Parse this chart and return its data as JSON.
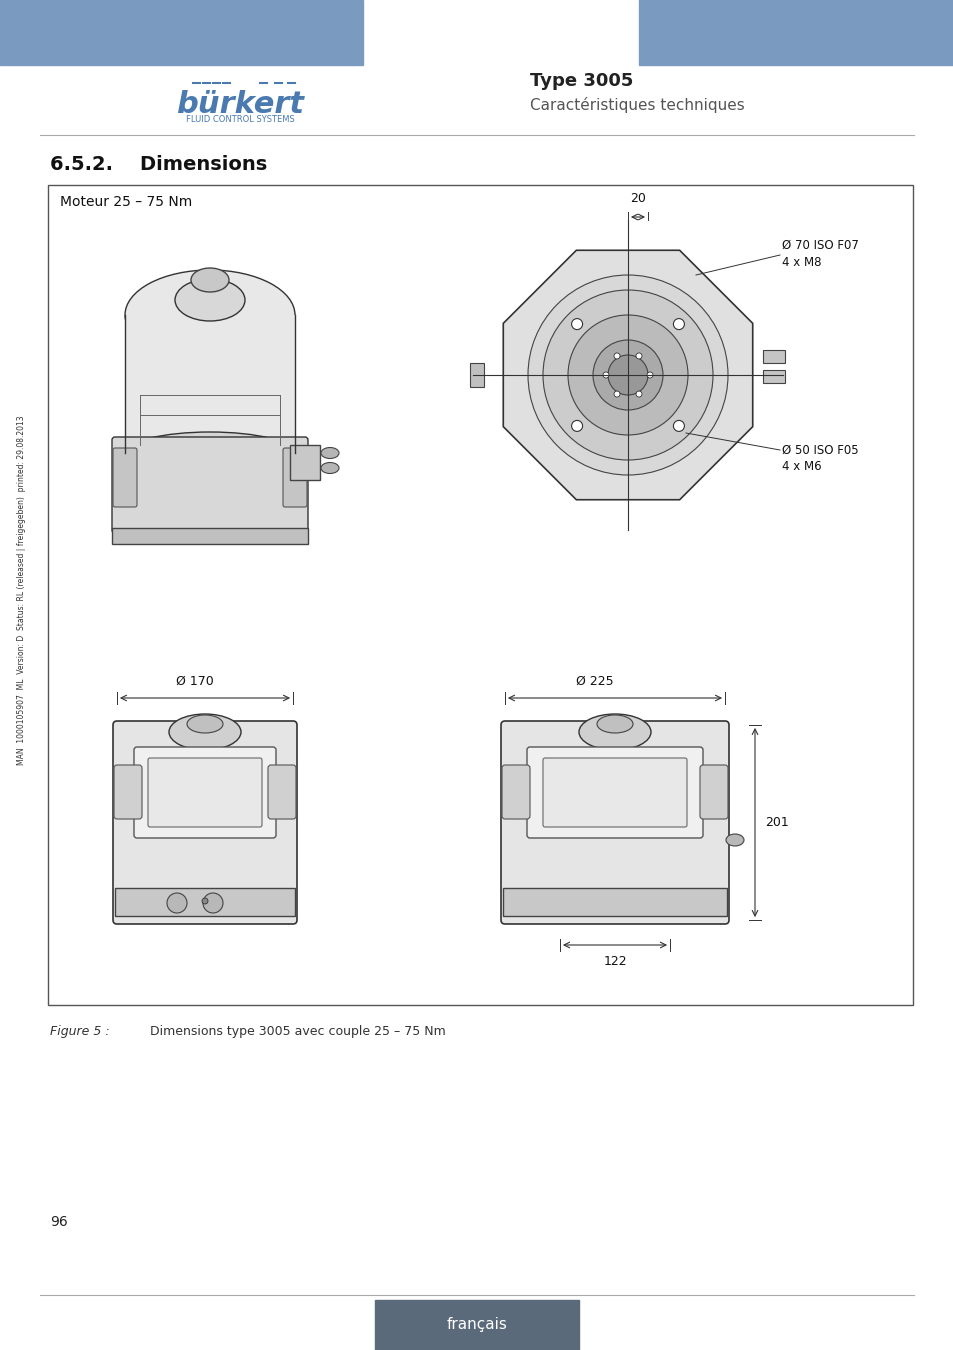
{
  "header_blue_color": "#7A9BBF",
  "burkert_color": "#4A7AAF",
  "type_label": "Type 3005",
  "subtitle_label": "Caractéristiques techniques",
  "section_title": "6.5.2.    Dimensions",
  "box_label": "Moteur 25 – 75 Nm",
  "dim_20": "20",
  "dim_70_iso": "Ø 70 ISO F07",
  "dim_4xm8": "4 x M8",
  "dim_50_iso": "Ø 50 ISO F05",
  "dim_4xm6": "4 x M6",
  "dim_170": "Ø 170",
  "dim_225": "Ø 225",
  "dim_201": "201",
  "dim_122": "122",
  "page_number": "96",
  "footer_label": "français",
  "footer_color": "#5A6A7A",
  "figure_caption_part1": "Figure 5 :",
  "figure_caption_part2": "Dimensions type 3005 avec couple 25 – 75 Nm",
  "side_text": "MAN  1000105907  ML  Version: D  Status: RL (released | freigegeben)  printed: 29.08.2013",
  "hr_color": "#AAAAAA"
}
